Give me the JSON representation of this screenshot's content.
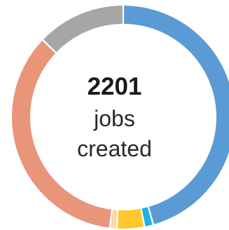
{
  "chart_data": {
    "type": "pie",
    "variant": "donut",
    "center_value": "2201",
    "center_label_line1": "jobs",
    "center_label_line2": "created",
    "segments": [
      {
        "value": 1005,
        "color": "#5b9bd5"
      },
      {
        "value": 28,
        "color": "#1fb0ee"
      },
      {
        "value": 88,
        "color": "#ffc82d"
      },
      {
        "value": 22,
        "color": "#f9d8a8"
      },
      {
        "value": 775,
        "color": "#e8957a"
      },
      {
        "value": 283,
        "color": "#a6a6a6"
      }
    ]
  }
}
